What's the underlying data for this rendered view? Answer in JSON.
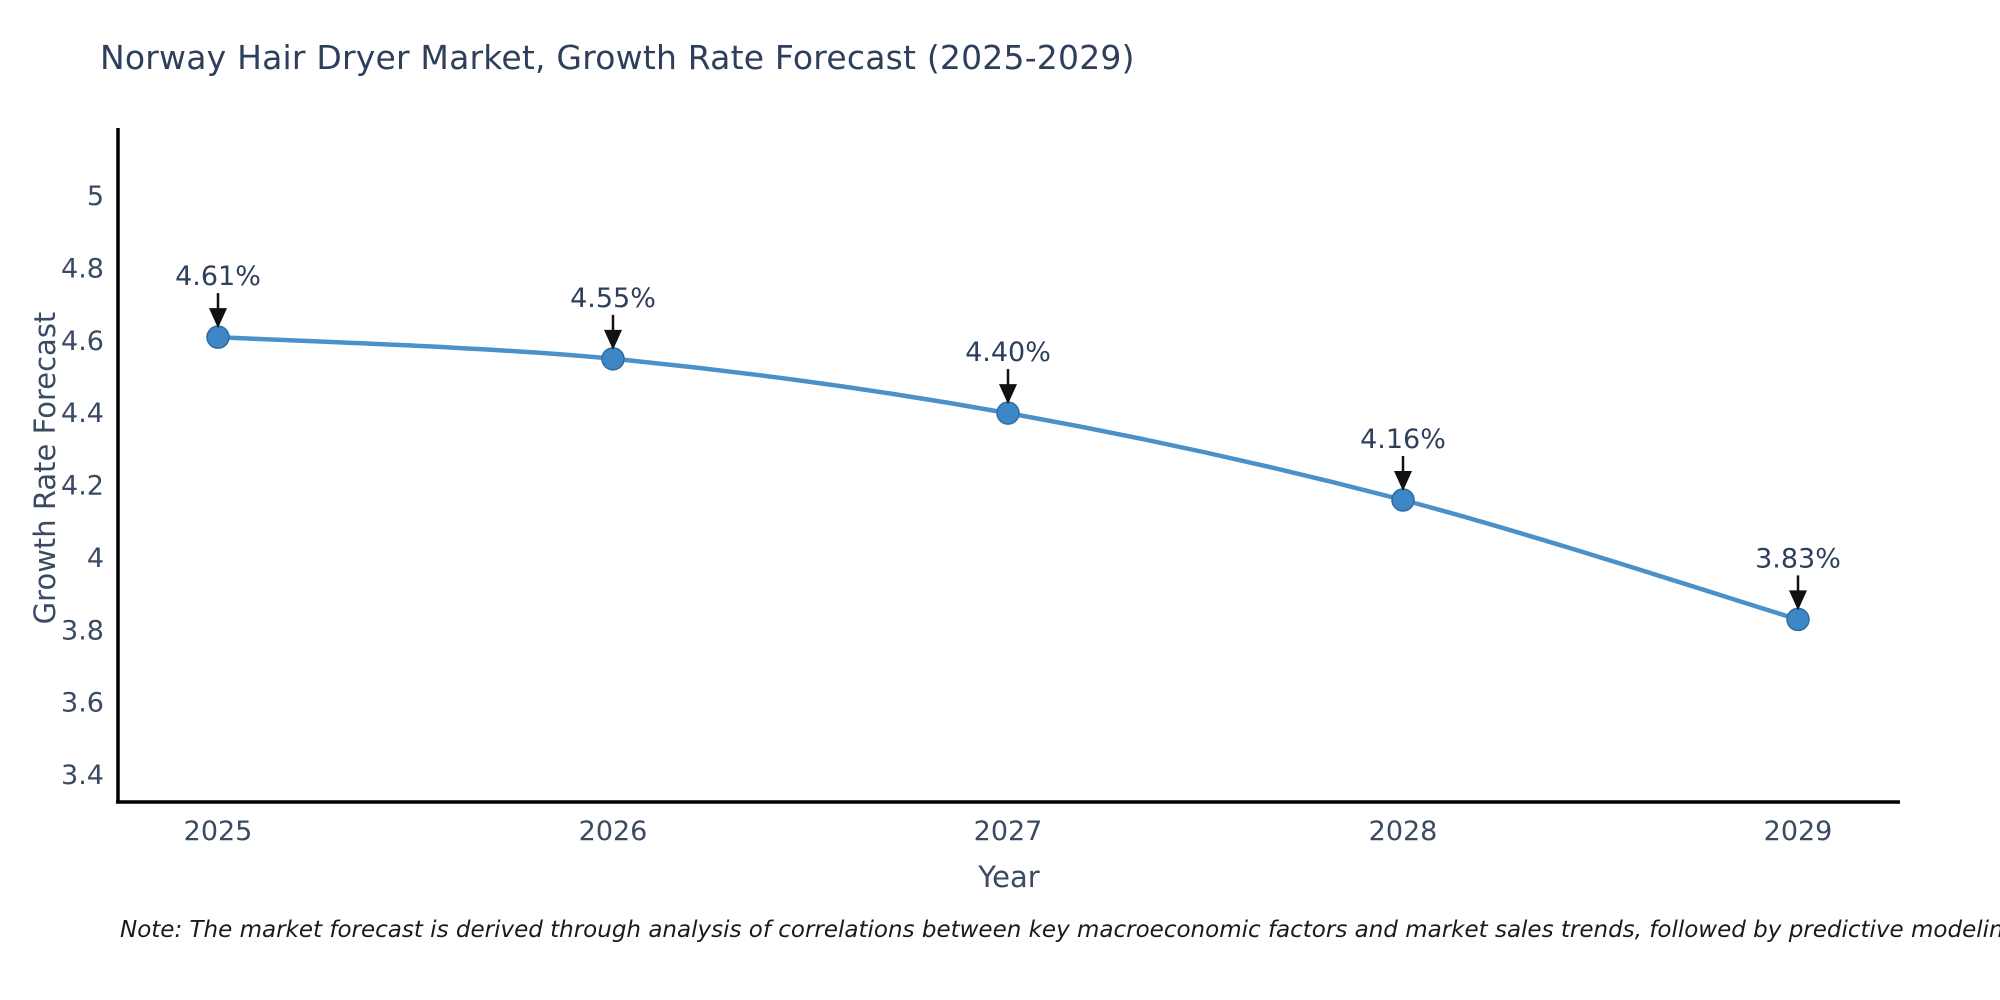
{
  "title": "Norway Hair Dryer Market, Growth Rate Forecast (2025-2029)",
  "note": "Note: The market forecast is derived through analysis of correlations between key macroeconomic factors and market sales trends, followed by predictive modeling to project future sales",
  "colors": {
    "line": "#4a90c9",
    "marker_fill": "#3f86c4",
    "marker_edge": "#2d6ca3",
    "axis_line": "#000000",
    "tick_text": "#3b4a63",
    "annotation_text": "#2e3f5c",
    "arrow": "#111111",
    "title_text": "#2e3f5c"
  },
  "chart_data": {
    "type": "line",
    "title": "Norway Hair Dryer Market, Growth Rate Forecast (2025-2029)",
    "xlabel": "Year",
    "ylabel": "Growth Rate Forecast",
    "categories": [
      "2025",
      "2026",
      "2027",
      "2028",
      "2029"
    ],
    "x": [
      2025,
      2026,
      2027,
      2028,
      2029
    ],
    "values": [
      4.61,
      4.55,
      4.4,
      4.16,
      3.83
    ],
    "point_labels": [
      "4.61%",
      "4.55%",
      "4.40%",
      "4.16%",
      "3.83%"
    ],
    "yticks": [
      5,
      4.8,
      4.6,
      4.4,
      4.2,
      4,
      3.8,
      3.6,
      3.4
    ],
    "ylim": [
      3.33,
      5.19
    ],
    "grid": false,
    "legend": "none",
    "line_shape": "spline",
    "marker": "circle"
  }
}
